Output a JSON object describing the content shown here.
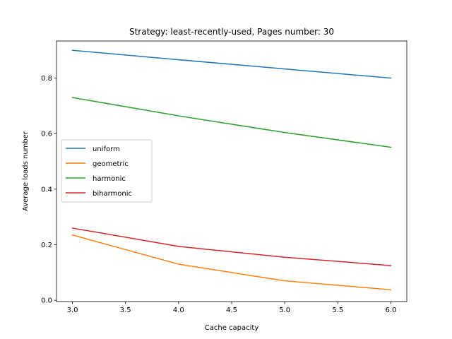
{
  "chart_data": {
    "type": "line",
    "title": "Strategy: least-recently-used, Pages number: 30",
    "xlabel": "Cache capacity",
    "ylabel": "Average loads number",
    "x": [
      3.0,
      4.0,
      5.0,
      6.0
    ],
    "xlim": [
      2.85,
      6.15
    ],
    "ylim": [
      -0.0046,
      0.9336
    ],
    "xticks": [
      "3.0",
      "3.5",
      "4.0",
      "4.5",
      "5.0",
      "5.5",
      "6.0"
    ],
    "yticks": [
      "0.0",
      "0.2",
      "0.4",
      "0.6",
      "0.8"
    ],
    "grid": false,
    "legend_position": "center-left",
    "series": [
      {
        "name": "uniform",
        "color": "#1f77b4",
        "values": [
          0.9,
          0.866,
          0.833,
          0.8
        ]
      },
      {
        "name": "geometric",
        "color": "#ff7f0e",
        "values": [
          0.235,
          0.13,
          0.07,
          0.038
        ]
      },
      {
        "name": "harmonic",
        "color": "#2ca02c",
        "values": [
          0.73,
          0.664,
          0.604,
          0.551
        ]
      },
      {
        "name": "biharmonic",
        "color": "#d62728",
        "values": [
          0.26,
          0.194,
          0.155,
          0.125
        ]
      }
    ]
  }
}
